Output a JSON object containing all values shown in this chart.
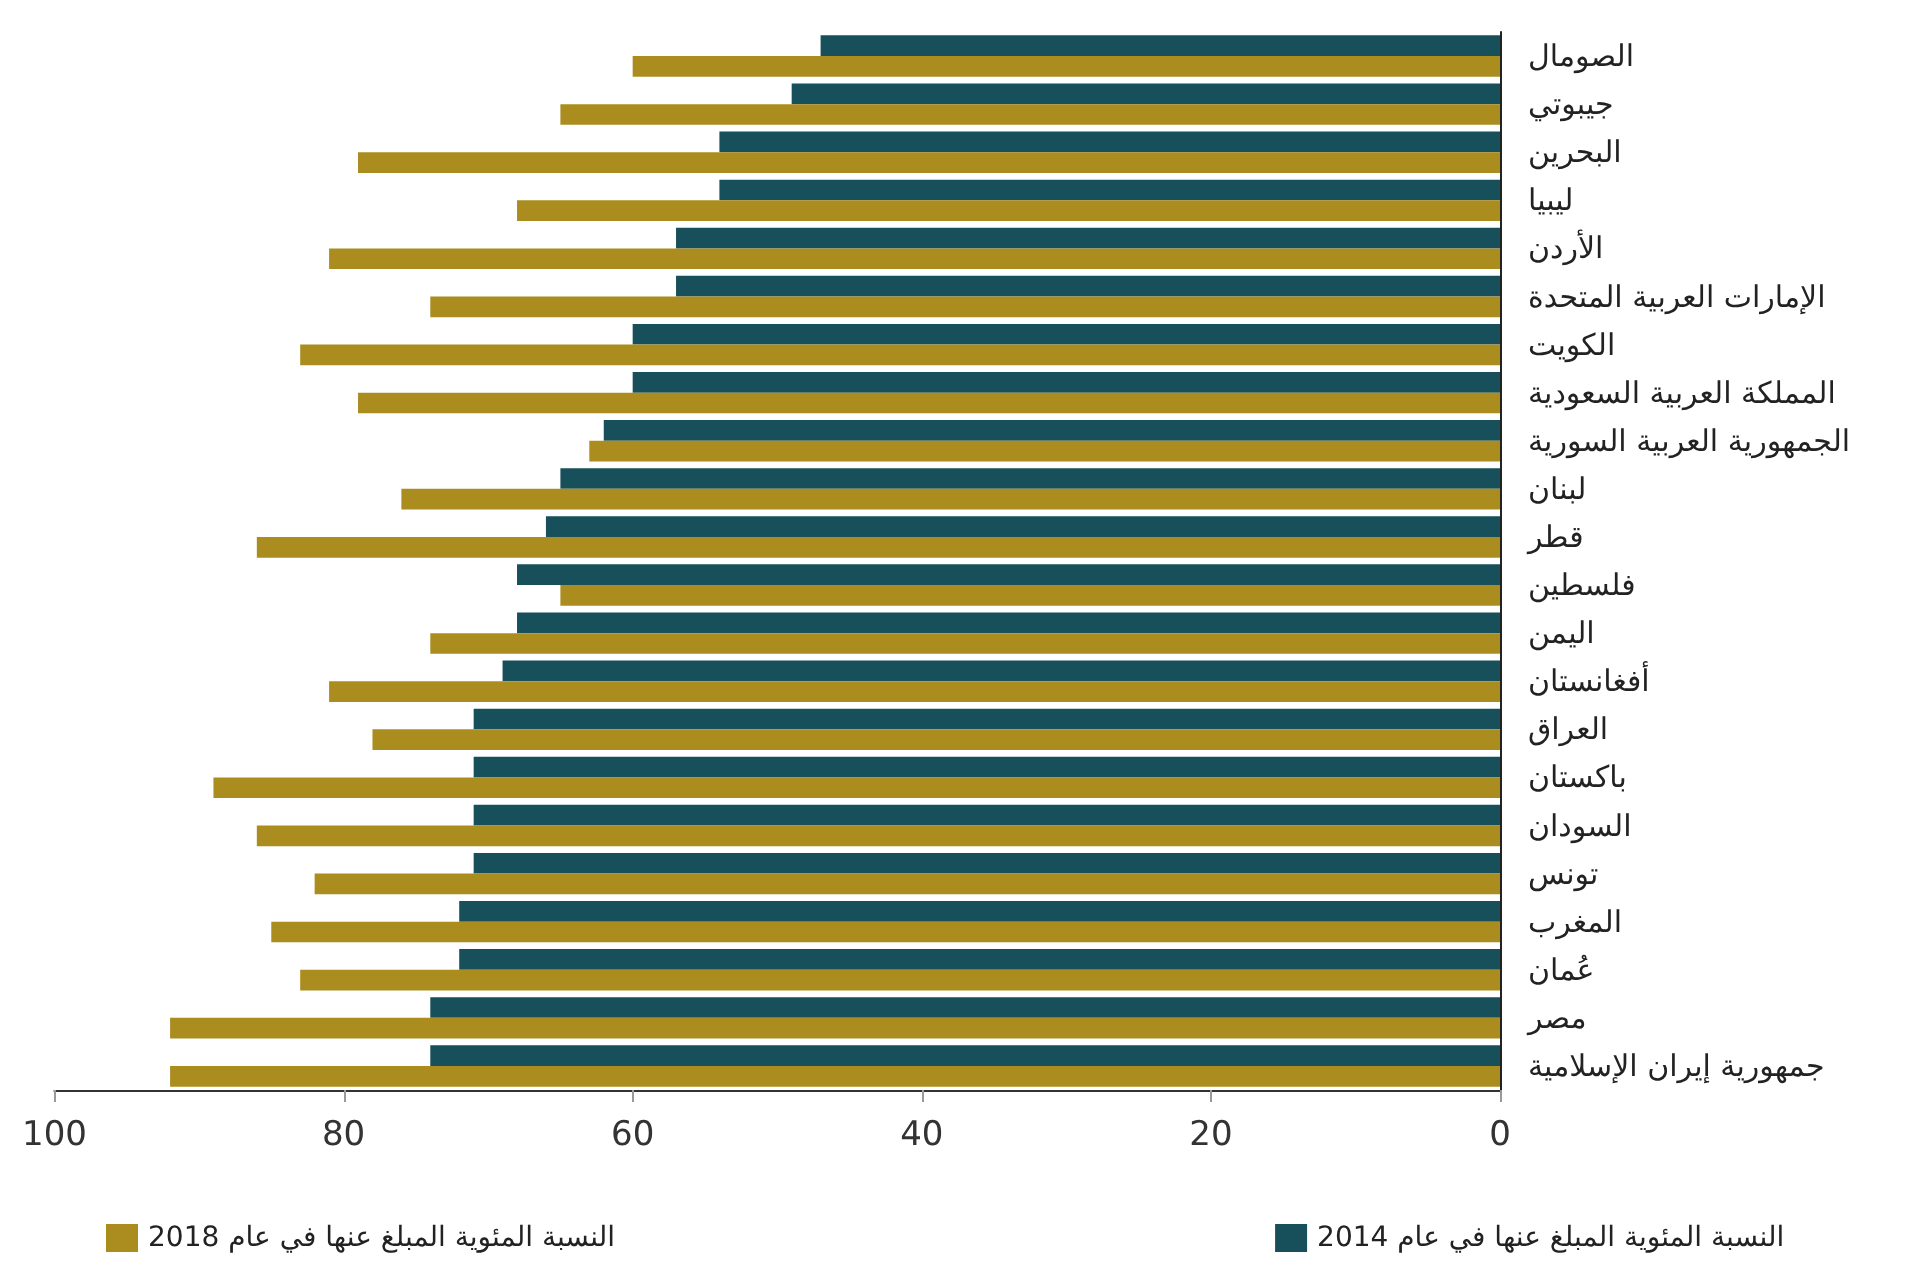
{
  "chart_data": {
    "type": "bar",
    "orientation": "horizontal",
    "categories": [
      "الصومال",
      "جيبوتي",
      "البحرين",
      "ليبيا",
      "الأردن",
      "الإمارات العربية المتحدة",
      "الكويت",
      "المملكة العربية السعودية",
      "الجمهورية العربية السورية",
      "لبنان",
      "قطر",
      "فلسطين",
      "اليمن",
      "أفغانستان",
      "العراق",
      "باكستان",
      "السودان",
      "تونس",
      "المغرب",
      "عُمان",
      "مصر",
      "جمهورية إيران الإسلامية"
    ],
    "series": [
      {
        "name": "النسبة المئوية المبلغ عنها في عام 2014",
        "color": "#174f5a",
        "values": [
          47,
          49,
          54,
          54,
          57,
          57,
          60,
          60,
          62,
          65,
          66,
          68,
          68,
          69,
          71,
          71,
          71,
          71,
          72,
          72,
          74,
          74
        ]
      },
      {
        "name": "النسبة المئوية المبلغ عنها في عام 2018",
        "color": "#ab8c1f",
        "values": [
          60,
          65,
          79,
          68,
          81,
          74,
          83,
          79,
          63,
          76,
          86,
          65,
          74,
          81,
          78,
          89,
          86,
          82,
          85,
          83,
          92,
          92
        ]
      }
    ],
    "xlim": [
      100,
      0
    ],
    "xticks": [
      100,
      80,
      60,
      40,
      20,
      0
    ],
    "grid": false,
    "legend": "bottom"
  }
}
